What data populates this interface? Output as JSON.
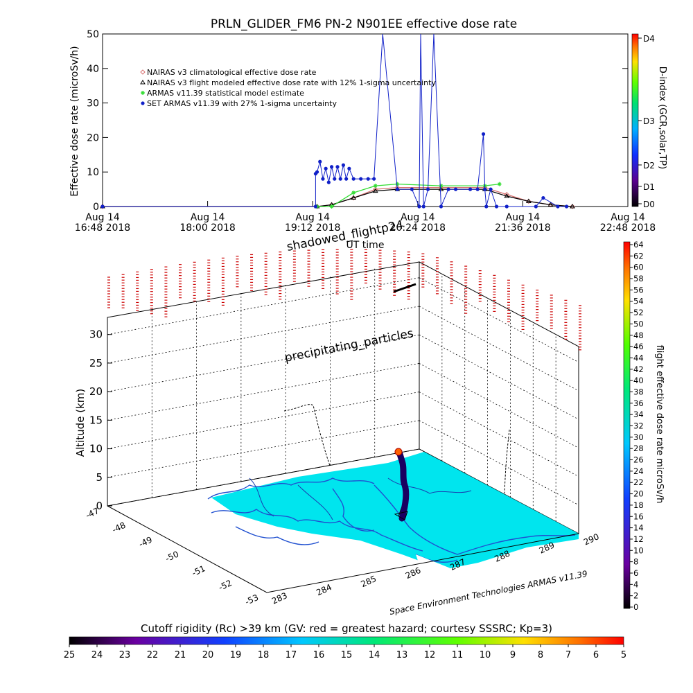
{
  "title": "PRLN_GLIDER_FM6 PN-2 N901EE effective dose rate",
  "colors": {
    "flight_line": "#1f2fcc",
    "nairas_clim": "#d87070",
    "nairas_flight": "#000000",
    "armas_stat": "#33dd33",
    "set_armas": "#1020c8",
    "map_water": "#00e5ee",
    "map_coast": "#2050d0",
    "precip_marks": "#cc0000"
  },
  "chart_data": [
    {
      "type": "line",
      "title": "PRLN_GLIDER_FM6 PN-2 N901EE effective dose rate",
      "xlabel": "UT time",
      "ylabel": "Effective dose rate (microSv/h)",
      "ylim": [
        0,
        50
      ],
      "yticks": [
        "0",
        "10",
        "20",
        "30",
        "40",
        "50"
      ],
      "xlim": [
        "16:48",
        "22:48"
      ],
      "xticks": [
        {
          "line1": "Aug 14",
          "line2": "16:48 2018"
        },
        {
          "line1": "Aug 14",
          "line2": "18:00 2018"
        },
        {
          "line1": "Aug 14",
          "line2": "19:12 2018"
        },
        {
          "line1": "Aug 14",
          "line2": "20:24 2018"
        },
        {
          "line1": "Aug 14",
          "line2": "21:36 2018"
        },
        {
          "line1": "Aug 14",
          "line2": "22:48 2018"
        }
      ],
      "right_axis": {
        "label": "D-index (GCR,solar,TP)",
        "ticks": [
          "D0",
          "D1",
          "D2",
          "D3",
          "D4"
        ]
      },
      "legend": [
        {
          "name": "NAIRAS v3 climatological effective dose rate",
          "marker": "diamond",
          "color": "#d87070"
        },
        {
          "name": "NAIRAS v3 flight modeled effective dose rate with 12% 1-sigma uncertainty",
          "marker": "triangle",
          "color": "#000000"
        },
        {
          "name": "ARMAS v11.39 statistical model estimate",
          "marker": "asterisk",
          "color": "#33dd33"
        },
        {
          "name": "SET ARMAS v11.39 with 27% 1-sigma uncertainty",
          "marker": "dot",
          "color": "#1020c8"
        }
      ],
      "legend_position": "top-left",
      "series": [
        {
          "name": "NAIRAS v3 climatological effective dose rate",
          "x": [
            "16:48",
            "19:15",
            "19:25",
            "19:40",
            "19:55",
            "20:10",
            "20:40",
            "21:10",
            "21:25",
            "21:40",
            "21:55",
            "22:10"
          ],
          "values": [
            0,
            0,
            0.5,
            2.5,
            5,
            5.5,
            5.5,
            5.5,
            3.5,
            1.5,
            0.5,
            0
          ]
        },
        {
          "name": "NAIRAS v3 flight modeled effective dose rate with 12% 1-sigma uncertainty",
          "x": [
            "16:48",
            "19:15",
            "19:25",
            "19:40",
            "19:55",
            "20:10",
            "20:40",
            "21:10",
            "21:25",
            "21:40",
            "21:55",
            "22:10"
          ],
          "values": [
            0,
            0,
            0.5,
            2.5,
            4.5,
            5,
            5,
            5,
            3,
            1.5,
            0.5,
            0
          ]
        },
        {
          "name": "ARMAS v11.39 statistical model estimate",
          "x": [
            "19:15",
            "19:25",
            "19:40",
            "19:55",
            "20:10",
            "20:40",
            "21:10",
            "21:20"
          ],
          "values": [
            0,
            0,
            4,
            6,
            6.5,
            6,
            6,
            6.5
          ]
        },
        {
          "name": "SET ARMAS v11.39 with 27% 1-sigma uncertainty",
          "x": [
            "16:48",
            "19:14",
            "19:14",
            "19:15",
            "19:17",
            "19:19",
            "19:21",
            "19:23",
            "19:25",
            "19:27",
            "19:29",
            "19:31",
            "19:33",
            "19:35",
            "19:37",
            "19:40",
            "19:45",
            "19:50",
            "19:54",
            "20:00",
            "20:10",
            "20:20",
            "20:25",
            "20:26",
            "20:28",
            "20:31",
            "20:35",
            "20:40",
            "20:45",
            "20:50",
            "21:00",
            "21:05",
            "21:09",
            "21:10",
            "21:11",
            "21:14",
            "21:18",
            "21:25",
            "21:45",
            "21:50",
            "22:00",
            "22:06"
          ],
          "values": [
            0,
            0,
            9.5,
            10,
            13,
            8,
            11,
            7,
            11.5,
            8,
            11.5,
            8,
            12,
            8,
            11,
            8,
            8,
            8,
            8,
            50,
            5,
            5,
            0,
            50,
            0,
            5,
            50,
            0,
            5,
            5,
            5,
            5,
            21,
            5,
            0,
            5,
            0,
            0,
            0,
            2.5,
            0,
            0
          ]
        }
      ]
    },
    {
      "type": "scatter",
      "subtype": "3d",
      "zlabel": "Altitude (km)",
      "zlim": [
        0,
        33
      ],
      "zticks": [
        "0",
        "5",
        "10",
        "15",
        "20",
        "25",
        "30"
      ],
      "lat_ticks": [
        "-47",
        "-48",
        "-49",
        "-50",
        "-51",
        "-52",
        "-53"
      ],
      "lon_ticks": [
        "283",
        "284",
        "285",
        "286",
        "287",
        "288",
        "289",
        "290"
      ],
      "annotations": [
        "shadowed_flightp24",
        "precipitating_particles"
      ],
      "credit": "Space Environment Technologies ARMAS v11.39",
      "colorbar_right": {
        "label": "flight effective dose rate microSv/h",
        "ticks": [
          "0",
          "2",
          "4",
          "6",
          "8",
          "10",
          "12",
          "14",
          "16",
          "18",
          "20",
          "22",
          "24",
          "26",
          "28",
          "30",
          "32",
          "34",
          "36",
          "38",
          "40",
          "42",
          "44",
          "46",
          "48",
          "50",
          "52",
          "54",
          "56",
          "58",
          "60",
          "62",
          "64"
        ]
      },
      "flight_track": {
        "lon": [
          287.3,
          287.35,
          287.4,
          287.5,
          287.6,
          287.7,
          287.75
        ],
        "lat": [
          -52.4,
          -52.0,
          -51.5,
          -51.0,
          -50.5,
          -50.0,
          -49.6
        ],
        "alt_km": [
          0.5,
          2,
          4,
          6,
          8,
          9,
          10
        ]
      }
    },
    {
      "type": "heatmap",
      "subtype": "colorbar",
      "label": "Cutoff rigidity (Rc) >39 km (GV: red = greatest hazard; courtesy SSSRC; Kp=3)",
      "ticks": [
        "25",
        "24",
        "23",
        "22",
        "21",
        "20",
        "19",
        "18",
        "17",
        "16",
        "15",
        "14",
        "13",
        "12",
        "11",
        "10",
        "9",
        "8",
        "7",
        "6",
        "5"
      ]
    }
  ]
}
